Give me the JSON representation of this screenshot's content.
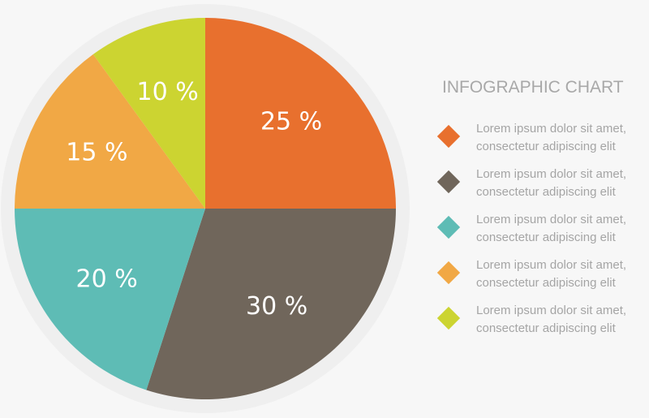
{
  "chart_data": {
    "type": "pie",
    "title": "INFOGRAPHIC CHART",
    "slices": [
      {
        "label": "25 %",
        "value": 25,
        "color": "#e8702e"
      },
      {
        "label": "30 %",
        "value": 30,
        "color": "#70665b"
      },
      {
        "label": "20 %",
        "value": 20,
        "color": "#5ebcb5"
      },
      {
        "label": "15 %",
        "value": 15,
        "color": "#f1a845"
      },
      {
        "label": "10 %",
        "value": 10,
        "color": "#ccd431"
      }
    ],
    "legend": {
      "placement": "right",
      "items": [
        {
          "line1": "Lorem ipsum dolor sit amet,",
          "line2": "consectetur adipiscing elit",
          "color": "#e8702e"
        },
        {
          "line1": "Lorem ipsum dolor sit amet,",
          "line2": "consectetur adipiscing elit",
          "color": "#70665b"
        },
        {
          "line1": "Lorem ipsum dolor sit amet,",
          "line2": "consectetur adipiscing elit",
          "color": "#5ebcb5"
        },
        {
          "line1": "Lorem ipsum dolor sit amet,",
          "line2": "consectetur adipiscing elit",
          "color": "#f1a845"
        },
        {
          "line1": "Lorem ipsum dolor sit amet,",
          "line2": "consectetur adipiscing elit",
          "color": "#ccd431"
        }
      ]
    }
  }
}
